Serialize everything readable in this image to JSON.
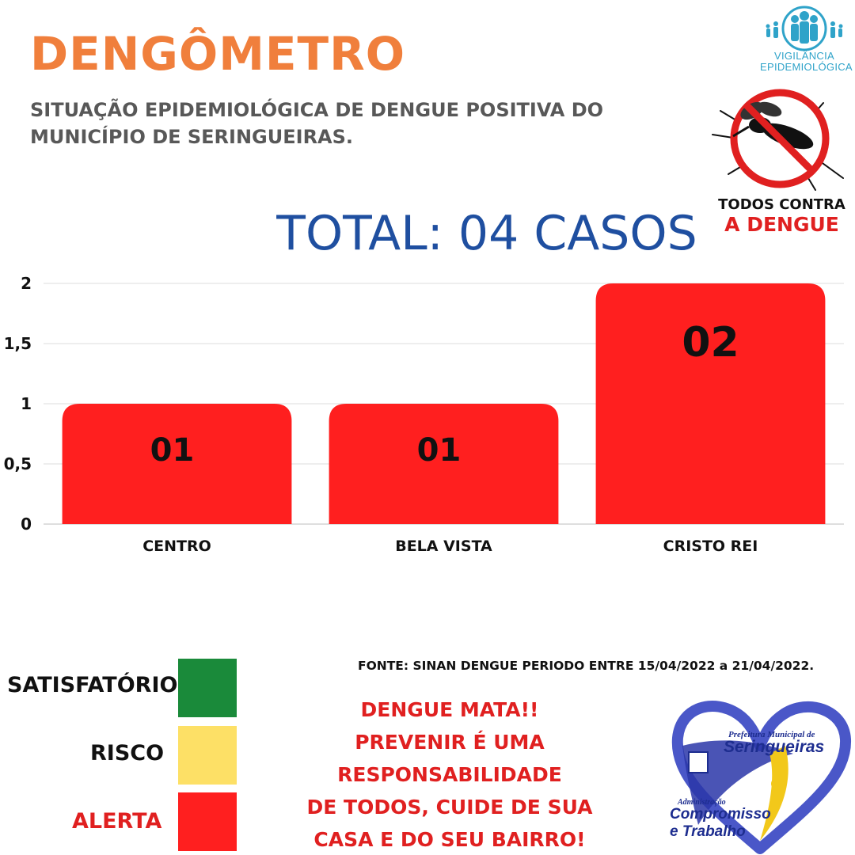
{
  "header": {
    "title": "DENGÔMETRO",
    "subtitle_line1": "SITUAÇÃO EPIDEMIOLÓGICA DE DENGUE POSITIVA DO",
    "subtitle_line2": "MUNICÍPIO DE SERINGUEIRAS."
  },
  "logos": {
    "vigilancia_line1": "VIGILÂNCIA",
    "vigilancia_line2": "EPIDEMIOLÓGICA",
    "campaign_line1": "TODOS CONTRA",
    "campaign_line2": "A DENGUE",
    "prefeitura_line1": "Prefeitura Municipal de",
    "prefeitura_line2": "Seringueiras",
    "prefeitura_line3": "Administração",
    "prefeitura_line4": "Compromisso",
    "prefeitura_line5": "e Trabalho"
  },
  "total_label": "TOTAL: 04 CASOS",
  "chart_data": {
    "type": "bar",
    "categories": [
      "CENTRO",
      "BELA VISTA",
      "CRISTO REI"
    ],
    "values": [
      1,
      1,
      2
    ],
    "data_labels": [
      "01",
      "01",
      "02"
    ],
    "yticks": [
      "0",
      "0,5",
      "1",
      "1,5",
      "2"
    ],
    "ytick_values": [
      0,
      0.5,
      1,
      1.5,
      2
    ],
    "ylim": [
      0,
      2
    ],
    "grid": true,
    "bar_color": "#ff1f1f"
  },
  "legend": {
    "items": [
      {
        "label": "SATISFATÓRIO",
        "color": "#1a8a3a",
        "label_color": "#111111"
      },
      {
        "label": "RISCO",
        "color": "#fde066",
        "label_color": "#111111"
      },
      {
        "label": "ALERTA",
        "color": "#ff1f1f",
        "label_color": "#e02020"
      }
    ]
  },
  "source": "FONTE: SINAN DENGUE PERIODO ENTRE 15/04/2022 a 21/04/2022.",
  "message": {
    "line1": "DENGUE MATA!!",
    "line2": "PREVENIR É UMA",
    "line3": "RESPONSABILIDADE",
    "line4": "DE TODOS, CUIDE DE SUA",
    "line5": "CASA E DO SEU BAIRRO!"
  },
  "colors": {
    "title": "#f07f3c",
    "subtitle": "#585858",
    "total": "#1f4fa0",
    "alert_red": "#e02020",
    "vigilancia_blue": "#2fa3c9"
  }
}
